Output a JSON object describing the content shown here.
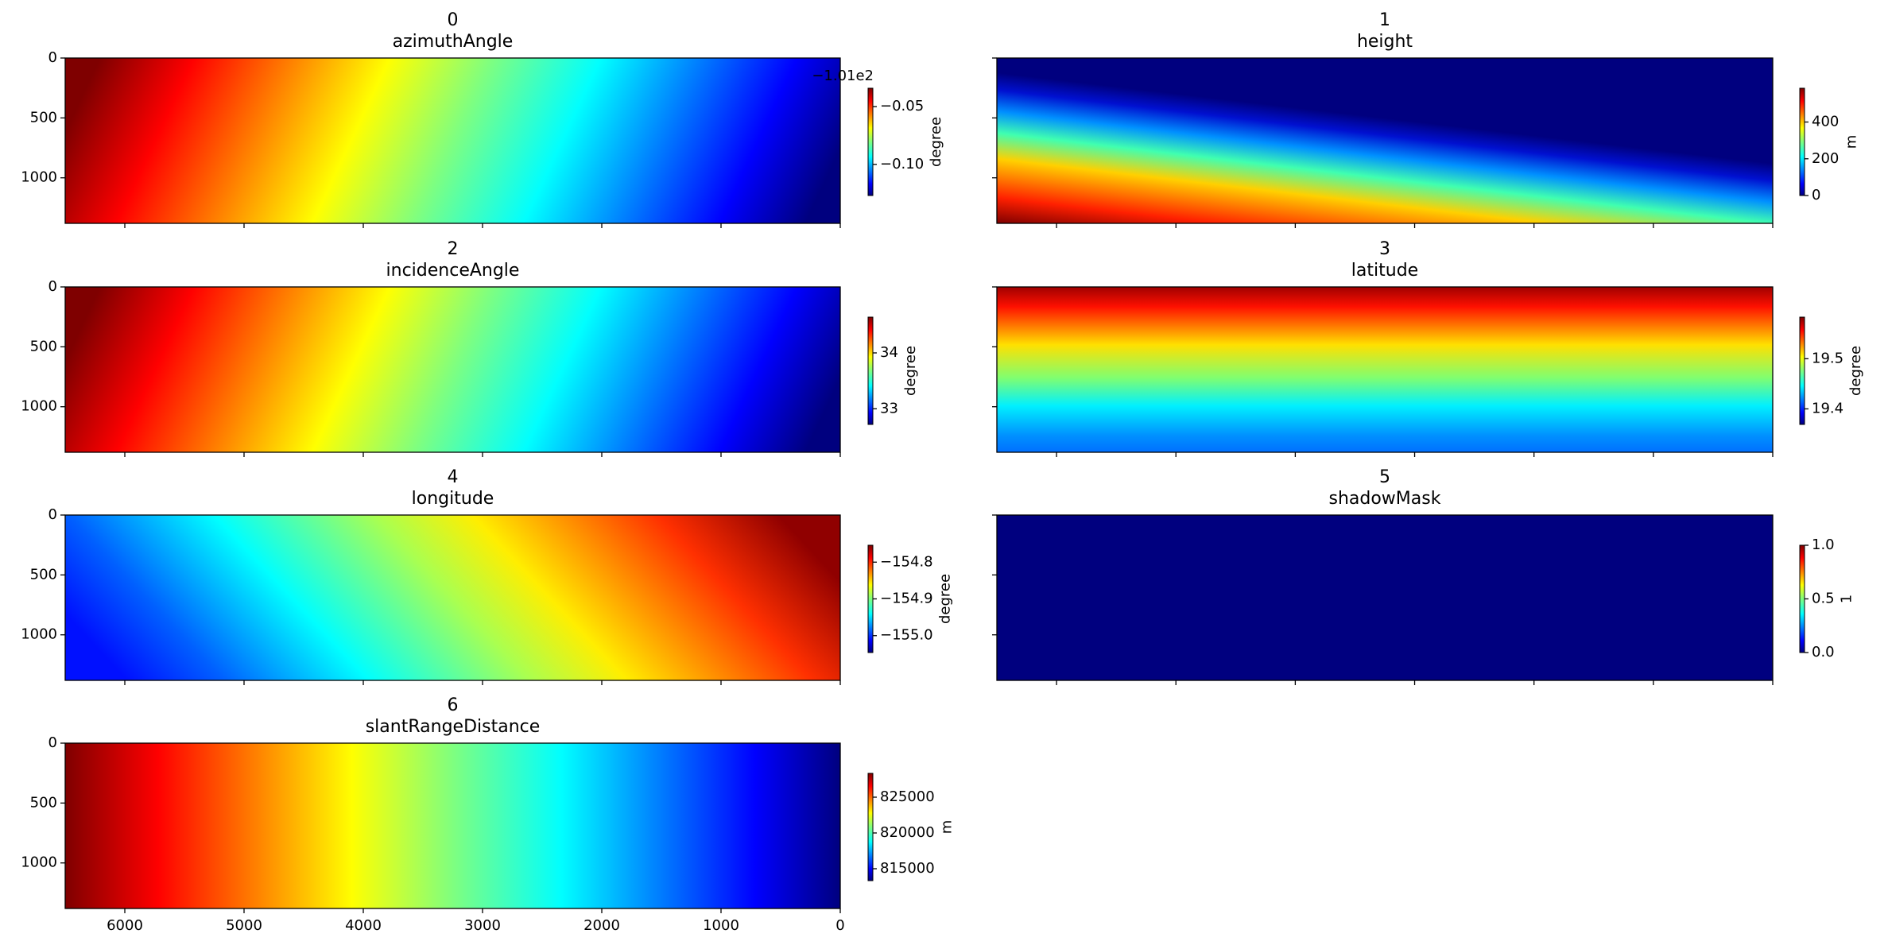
{
  "chart_data": [
    {
      "type": "image",
      "panel": "0",
      "title": "azimuthAngle",
      "colorbar_label": "degree",
      "colormap": "jet",
      "clim": [
        -0.127,
        -0.034
      ],
      "cticks": [
        {
          "value": -0.05,
          "label": "−0.05"
        },
        {
          "value": -0.1,
          "label": "−0.10"
        }
      ],
      "colorbar_offset": "−1.01e2",
      "ylim": [
        1380,
        0
      ],
      "yticks": [
        0,
        500,
        1000
      ]
    },
    {
      "type": "image",
      "panel": "1",
      "title": "height",
      "colorbar_label": "m",
      "colormap": "jet",
      "clim": [
        0,
        584
      ],
      "cticks": [
        0,
        200,
        400
      ]
    },
    {
      "type": "image",
      "panel": "2",
      "title": "incidenceAngle",
      "colorbar_label": "degree",
      "colormap": "jet",
      "clim": [
        32.72,
        34.64
      ],
      "cticks": [
        33,
        34
      ],
      "ylim": [
        1380,
        0
      ],
      "yticks": [
        0,
        500,
        1000
      ]
    },
    {
      "type": "image",
      "panel": "3",
      "title": "latitude",
      "colorbar_label": "degree",
      "colormap": "jet",
      "clim": [
        19.369,
        19.583
      ],
      "cticks": [
        19.4,
        19.5
      ]
    },
    {
      "type": "image",
      "panel": "4",
      "title": "longitude",
      "colorbar_label": "degree",
      "colormap": "jet",
      "clim": [
        -155.046,
        -154.754
      ],
      "cticks": [
        {
          "value": -155.0,
          "label": "−155.0"
        },
        {
          "value": -154.9,
          "label": "−154.9"
        },
        {
          "value": -154.8,
          "label": "−154.8"
        }
      ],
      "ylim": [
        1380,
        0
      ],
      "yticks": [
        0,
        500,
        1000
      ]
    },
    {
      "type": "image",
      "panel": "5",
      "title": "shadowMask",
      "colorbar_label": "1",
      "colormap": "jet",
      "clim": [
        0,
        1
      ],
      "cticks": [
        {
          "value": 0,
          "label": "0.0"
        },
        {
          "value": 0.5,
          "label": "0.5"
        },
        {
          "value": 1,
          "label": "1.0"
        }
      ]
    },
    {
      "type": "image",
      "panel": "6",
      "title": "slantRangeDistance",
      "colorbar_label": "m",
      "colormap": "jet",
      "clim": [
        813333,
        828333
      ],
      "cticks": [
        815000,
        820000,
        825000
      ],
      "ylim": [
        1380,
        0
      ],
      "yticks": [
        0,
        500,
        1000
      ],
      "xlim": [
        6500,
        0
      ],
      "xticks": [
        6000,
        5000,
        4000,
        3000,
        2000,
        1000,
        0
      ]
    }
  ]
}
